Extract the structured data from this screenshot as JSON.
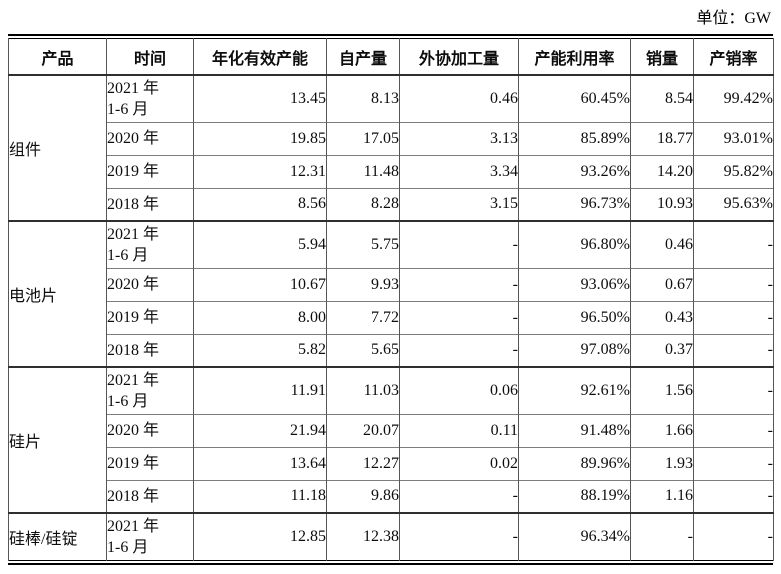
{
  "page": {
    "unit_label": "单位：GW"
  },
  "table": {
    "headers": [
      {
        "key": "product",
        "label": "产品"
      },
      {
        "key": "period",
        "label": "时间"
      },
      {
        "key": "capacity",
        "label": "年化有效产能"
      },
      {
        "key": "self_output",
        "label": "自产量"
      },
      {
        "key": "outsourced",
        "label": "外协加工量"
      },
      {
        "key": "utilization",
        "label": "产能利用率"
      },
      {
        "key": "sales",
        "label": "销量"
      },
      {
        "key": "sales_ratio",
        "label": "产销率"
      }
    ],
    "groups": [
      {
        "product": "组件",
        "rows": [
          {
            "period": "2021 年\n1-6 月",
            "capacity": "13.45",
            "self_output": "8.13",
            "outsourced": "0.46",
            "utilization": "60.45%",
            "sales": "8.54",
            "sales_ratio": "99.42%"
          },
          {
            "period": "2020 年",
            "capacity": "19.85",
            "self_output": "17.05",
            "outsourced": "3.13",
            "utilization": "85.89%",
            "sales": "18.77",
            "sales_ratio": "93.01%"
          },
          {
            "period": "2019 年",
            "capacity": "12.31",
            "self_output": "11.48",
            "outsourced": "3.34",
            "utilization": "93.26%",
            "sales": "14.20",
            "sales_ratio": "95.82%"
          },
          {
            "period": "2018 年",
            "capacity": "8.56",
            "self_output": "8.28",
            "outsourced": "3.15",
            "utilization": "96.73%",
            "sales": "10.93",
            "sales_ratio": "95.63%"
          }
        ]
      },
      {
        "product": "电池片",
        "rows": [
          {
            "period": "2021 年\n1-6 月",
            "capacity": "5.94",
            "self_output": "5.75",
            "outsourced": "-",
            "utilization": "96.80%",
            "sales": "0.46",
            "sales_ratio": "-"
          },
          {
            "period": "2020 年",
            "capacity": "10.67",
            "self_output": "9.93",
            "outsourced": "-",
            "utilization": "93.06%",
            "sales": "0.67",
            "sales_ratio": "-"
          },
          {
            "period": "2019 年",
            "capacity": "8.00",
            "self_output": "7.72",
            "outsourced": "-",
            "utilization": "96.50%",
            "sales": "0.43",
            "sales_ratio": "-"
          },
          {
            "period": "2018 年",
            "capacity": "5.82",
            "self_output": "5.65",
            "outsourced": "-",
            "utilization": "97.08%",
            "sales": "0.37",
            "sales_ratio": "-"
          }
        ]
      },
      {
        "product": "硅片",
        "rows": [
          {
            "period": "2021 年\n1-6 月",
            "capacity": "11.91",
            "self_output": "11.03",
            "outsourced": "0.06",
            "utilization": "92.61%",
            "sales": "1.56",
            "sales_ratio": "-"
          },
          {
            "period": "2020 年",
            "capacity": "21.94",
            "self_output": "20.07",
            "outsourced": "0.11",
            "utilization": "91.48%",
            "sales": "1.66",
            "sales_ratio": "-"
          },
          {
            "period": "2019 年",
            "capacity": "13.64",
            "self_output": "12.27",
            "outsourced": "0.02",
            "utilization": "89.96%",
            "sales": "1.93",
            "sales_ratio": "-"
          },
          {
            "period": "2018 年",
            "capacity": "11.18",
            "self_output": "9.86",
            "outsourced": "-",
            "utilization": "88.19%",
            "sales": "1.16",
            "sales_ratio": "-"
          }
        ]
      },
      {
        "product": "硅棒/硅锭",
        "rows": [
          {
            "period": "2021 年\n1-6 月",
            "capacity": "12.85",
            "self_output": "12.38",
            "outsourced": "-",
            "utilization": "96.34%",
            "sales": "-",
            "sales_ratio": "-"
          }
        ]
      }
    ]
  }
}
